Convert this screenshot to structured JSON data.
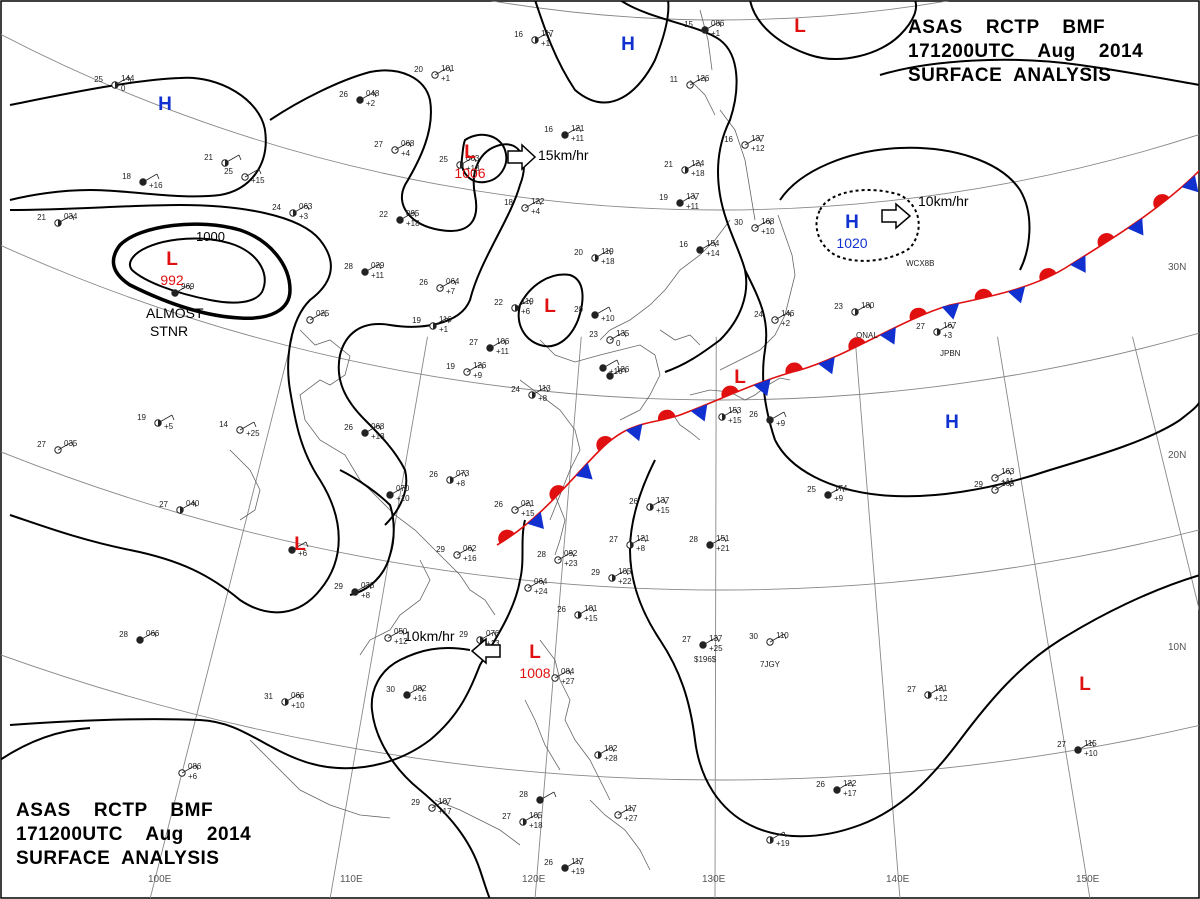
{
  "header": {
    "line1": "ASAS    RCTP    BMF",
    "line2": "171200UTC    Aug    2014",
    "line3": "SURFACE  ANALYSIS"
  },
  "colors": {
    "high": "#1030d0",
    "low": "#e01010",
    "warm_front": "#e01010",
    "cold_front": "#1030d0",
    "isobar": "#000000",
    "grid": "#888888",
    "coast": "#555555"
  },
  "grid_labels": {
    "lon": [
      "110E",
      "120E",
      "130E",
      "140E",
      "150E"
    ],
    "lat": [
      "30N",
      "20N",
      "10N"
    ],
    "lon_partial": "100E"
  },
  "pressure_centers": [
    {
      "type": "H",
      "label": "H"
    },
    {
      "type": "H",
      "label": "H"
    },
    {
      "type": "L",
      "label": "L"
    },
    {
      "type": "L",
      "label": "L",
      "value": "992"
    },
    {
      "type": "L",
      "label": "L",
      "value": "1006"
    },
    {
      "type": "L",
      "label": "L"
    },
    {
      "type": "H",
      "label": "H",
      "value": "1020"
    },
    {
      "type": "L",
      "label": "L"
    },
    {
      "type": "L",
      "label": "L"
    },
    {
      "type": "L",
      "label": "L",
      "value": "1008"
    },
    {
      "type": "H",
      "label": "H"
    },
    {
      "type": "L",
      "label": "L"
    },
    {
      "type": "L",
      "label": "L"
    }
  ],
  "motion_labels": [
    "15km/hr",
    "10km/hr",
    "10km/hr"
  ],
  "annotations": {
    "almost_stnr_1": "ALMOST",
    "almost_stnr_2": "STNR",
    "isobar_label": "1000"
  },
  "ship_ids": [
    "WCX8B",
    "ONAL",
    "JPBN",
    "7JGY",
    "$196$"
  ],
  "stations": [
    {
      "t": "25",
      "p": "144",
      "d": "0"
    },
    {
      "t": "26",
      "p": "048",
      "d": "+2"
    },
    {
      "t": "20",
      "p": "101",
      "d": "+1"
    },
    {
      "t": "16",
      "p": "117",
      "d": "+1"
    },
    {
      "t": "15",
      "p": "086",
      "d": "+1"
    },
    {
      "t": "27",
      "p": "068",
      "d": "+4"
    },
    {
      "t": "25",
      "p": "063",
      "d": "+13"
    },
    {
      "t": "16",
      "p": "121",
      "d": "+11"
    },
    {
      "t": "11",
      "p": "126",
      "d": ""
    },
    {
      "t": "21",
      "p": "124",
      "d": "+18"
    },
    {
      "t": "19",
      "p": "137",
      "d": "+11"
    },
    {
      "t": "16",
      "p": "137",
      "d": "+12"
    },
    {
      "t": "21",
      "p": "",
      "d": ""
    },
    {
      "t": "18",
      "p": "",
      "d": "+16"
    },
    {
      "t": "25",
      "p": "",
      "d": "+15"
    },
    {
      "t": "24",
      "p": "063",
      "d": "+3"
    },
    {
      "t": "22",
      "p": "095",
      "d": "+18"
    },
    {
      "t": "18",
      "p": "122",
      "d": "+4"
    },
    {
      "t": "20",
      "p": "119",
      "d": "+18"
    },
    {
      "t": "16",
      "p": "154",
      "d": "+14"
    },
    {
      "t": "30",
      "p": "168",
      "d": "+10"
    },
    {
      "t": "21",
      "p": "034",
      "d": ""
    },
    {
      "t": "28",
      "p": "029",
      "d": "+11"
    },
    {
      "t": "26",
      "p": "064",
      "d": "+7"
    },
    {
      "t": "22",
      "p": "119",
      "d": "+6"
    },
    {
      "t": "20",
      "p": "",
      "d": "+10"
    },
    {
      "t": "24",
      "p": "146",
      "d": "+2"
    },
    {
      "t": "23",
      "p": "180",
      "d": ""
    },
    {
      "t": "",
      "p": "969",
      "d": ""
    },
    {
      "t": "",
      "p": "025",
      "d": ""
    },
    {
      "t": "19",
      "p": "116",
      "d": "+1"
    },
    {
      "t": "27",
      "p": "106",
      "d": "+11"
    },
    {
      "t": "23",
      "p": "135",
      "d": "0"
    },
    {
      "t": "27",
      "p": "167",
      "d": "+3"
    },
    {
      "t": "",
      "p": "",
      "d": "+16"
    },
    {
      "t": "19",
      "p": "126",
      "d": "+9"
    },
    {
      "t": "24",
      "p": "113",
      "d": "+8"
    },
    {
      "t": "",
      "p": "126",
      "d": ""
    },
    {
      "t": "14",
      "p": "",
      "d": "+25"
    },
    {
      "t": "19",
      "p": "",
      "d": "+5"
    },
    {
      "t": "26",
      "p": "068",
      "d": "+13"
    },
    {
      "t": "27",
      "p": "035",
      "d": ""
    },
    {
      "t": "",
      "p": "153",
      "d": "+15"
    },
    {
      "t": "26",
      "p": "",
      "d": "+9"
    },
    {
      "t": "",
      "p": "163",
      "d": "+11"
    },
    {
      "t": "26",
      "p": "073",
      "d": "+8"
    },
    {
      "t": "",
      "p": "070",
      "d": "+10"
    },
    {
      "t": "26",
      "p": "021",
      "d": "+15"
    },
    {
      "t": "26",
      "p": "137",
      "d": "+15"
    },
    {
      "t": "25",
      "p": "174",
      "d": "+9"
    },
    {
      "t": "29",
      "p": "163",
      "d": ""
    },
    {
      "t": "27",
      "p": "040",
      "d": ""
    },
    {
      "t": "",
      "p": "",
      "d": "+6"
    },
    {
      "t": "29",
      "p": "062",
      "d": "+16"
    },
    {
      "t": "27",
      "p": "121",
      "d": "+8"
    },
    {
      "t": "28",
      "p": "151",
      "d": "+21"
    },
    {
      "t": "28",
      "p": "092",
      "d": "+23"
    },
    {
      "t": "29",
      "p": "105",
      "d": "+22"
    },
    {
      "t": "29",
      "p": "038",
      "d": "+8"
    },
    {
      "t": "",
      "p": "064",
      "d": "+24"
    },
    {
      "t": "26",
      "p": "101",
      "d": "+15"
    },
    {
      "t": "28",
      "p": "066",
      "d": ""
    },
    {
      "t": "",
      "p": "050",
      "d": "+12"
    },
    {
      "t": "29",
      "p": "076",
      "d": "+13"
    },
    {
      "t": "27",
      "p": "137",
      "d": "+25"
    },
    {
      "t": "30",
      "p": "110",
      "d": ""
    },
    {
      "t": "31",
      "p": "066",
      "d": "+10"
    },
    {
      "t": "30",
      "p": "082",
      "d": "+16"
    },
    {
      "t": "",
      "p": "084",
      "d": "+27"
    },
    {
      "t": "27",
      "p": "121",
      "d": "+12"
    },
    {
      "t": "27",
      "p": "115",
      "d": "+10"
    },
    {
      "t": "",
      "p": "086",
      "d": "+6"
    },
    {
      "t": "",
      "p": "102",
      "d": "+28"
    },
    {
      "t": "26",
      "p": "122",
      "d": "+17"
    },
    {
      "t": "29",
      "p": "107",
      "d": "+17"
    },
    {
      "t": "27",
      "p": "105",
      "d": "+18"
    },
    {
      "t": "28",
      "p": "",
      "d": ""
    },
    {
      "t": "",
      "p": "117",
      "d": "+27"
    },
    {
      "t": "",
      "p": "",
      "d": "+19"
    },
    {
      "t": "26",
      "p": "117",
      "d": "+19"
    }
  ]
}
